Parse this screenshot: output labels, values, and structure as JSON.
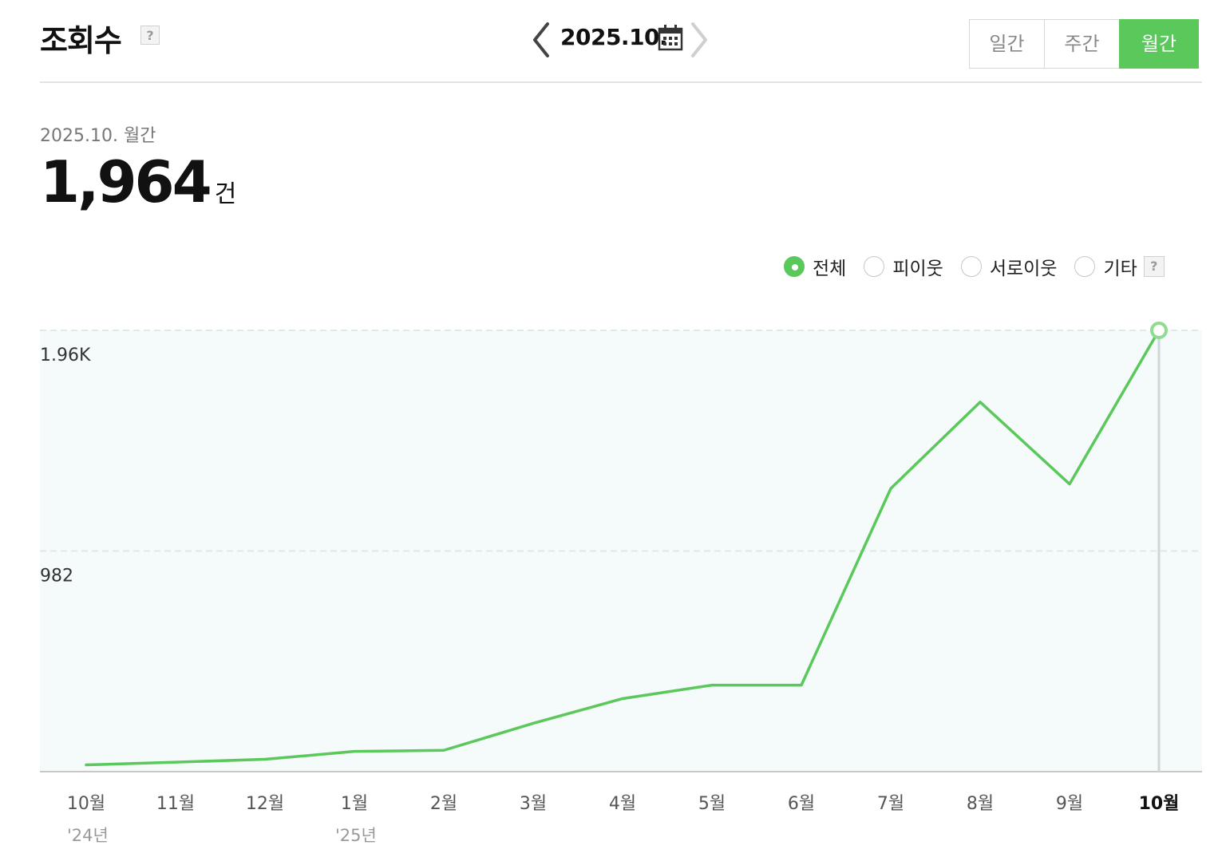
{
  "header": {
    "title": "조회수",
    "help_symbol": "?",
    "current_date": "2025.10.",
    "tabs": [
      {
        "label": "일간",
        "active": false
      },
      {
        "label": "주간",
        "active": false
      },
      {
        "label": "월간",
        "active": true
      }
    ]
  },
  "summary": {
    "period_label": "2025.10. 월간",
    "total_value": "1,964",
    "total_unit": "건"
  },
  "filters": [
    {
      "label": "전체",
      "checked": true
    },
    {
      "label": "피이웃",
      "checked": false
    },
    {
      "label": "서로이웃",
      "checked": false
    },
    {
      "label": "기타",
      "checked": false
    }
  ],
  "colors": {
    "accent": "#5ac85a",
    "line": "#5ac85a",
    "plot_bg": "#f5fafb",
    "grid": "#dfe8ea"
  },
  "icons": {
    "prev": "chevron-left-icon",
    "next": "chevron-right-icon",
    "calendar": "calendar-icon",
    "help": "question-icon"
  },
  "chart_data": {
    "type": "line",
    "categories": [
      "10월",
      "11월",
      "12월",
      "1월",
      "2월",
      "3월",
      "4월",
      "5월",
      "6월",
      "7월",
      "8월",
      "9월",
      "10월"
    ],
    "year_labels": [
      "'24년",
      "",
      "",
      "'25년",
      "",
      "",
      "",
      "",
      "",
      "",
      "",
      "",
      ""
    ],
    "values": [
      30,
      42,
      55,
      90,
      95,
      215,
      325,
      385,
      385,
      1260,
      1645,
      1280,
      1964
    ],
    "y_tick_labels": [
      "1.96K",
      "982"
    ],
    "y_ticks": [
      1964,
      982
    ],
    "ylim": [
      0,
      1964
    ],
    "highlight_index": 12,
    "grid": true
  }
}
